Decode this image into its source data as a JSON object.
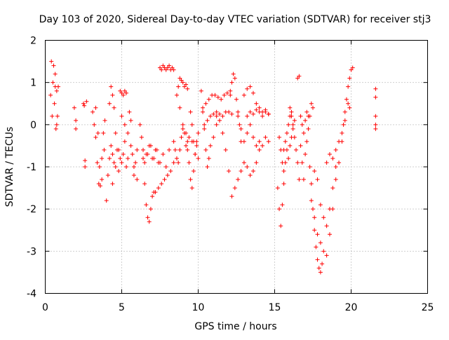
{
  "chart_data": {
    "type": "scatter",
    "title": "Day 103 of 2020, Sidereal Day-to-day VTEC variation (SDTVAR) for receiver stj3",
    "xlabel": "GPS time / hours",
    "ylabel": "SDTVAR / TECUs",
    "xlim": [
      0,
      25
    ],
    "ylim": [
      -4,
      2
    ],
    "xticks": [
      0,
      5,
      10,
      15,
      20,
      25
    ],
    "yticks": [
      -4,
      -3,
      -2,
      -1,
      0,
      1,
      2
    ],
    "grid": true,
    "marker": "+",
    "color": "#ff0000",
    "series": [
      {
        "name": "t0",
        "x": [
          0.4,
          0.5,
          0.6,
          0.65,
          0.7,
          0.75,
          0.8
        ],
        "y": [
          1.5,
          1.0,
          0.5,
          1.2,
          -0.1,
          0.8,
          0.2
        ]
      },
      {
        "name": "t1",
        "x": [
          0.35,
          0.45,
          0.55,
          0.65,
          0.75,
          0.85
        ],
        "y": [
          0.7,
          0.2,
          1.4,
          0.9,
          0.0,
          0.9
        ]
      },
      {
        "name": "t2",
        "x": [
          1.9,
          2.0,
          2.0
        ],
        "y": [
          0.4,
          0.1,
          -0.1
        ]
      },
      {
        "name": "t3",
        "x": [
          2.5,
          2.55,
          2.6,
          2.6,
          2.7
        ],
        "y": [
          0.5,
          0.45,
          -0.85,
          -1.0,
          0.55
        ]
      },
      {
        "name": "t4",
        "x": [
          3.1,
          3.3,
          3.4,
          3.5,
          3.6,
          3.7,
          3.8,
          3.9
        ],
        "y": [
          0.3,
          -0.3,
          -0.9,
          -1.4,
          -1.45,
          -0.8,
          -0.2,
          0.1
        ]
      },
      {
        "name": "t5",
        "x": [
          3.2,
          3.3,
          3.45,
          3.55,
          3.7,
          3.85
        ],
        "y": [
          0.0,
          0.4,
          -0.2,
          -1.0,
          -1.3,
          -0.6
        ]
      },
      {
        "name": "t6",
        "x": [
          4.0,
          4.1,
          4.2,
          4.3,
          4.4,
          4.5
        ],
        "y": [
          -1.8,
          -1.2,
          -0.8,
          -0.5,
          -0.7,
          -0.9
        ]
      },
      {
        "name": "t7",
        "x": [
          4.2,
          4.3,
          4.4,
          4.5,
          4.6,
          4.7,
          4.8,
          4.9
        ],
        "y": [
          0.5,
          0.9,
          0.7,
          0.4,
          -0.2,
          -0.6,
          -1.1,
          -0.8
        ]
      },
      {
        "name": "t8",
        "x": [
          4.4,
          4.6,
          4.8,
          5.0,
          5.1,
          5.2,
          5.3,
          5.4
        ],
        "y": [
          -1.4,
          -1.0,
          -0.6,
          -0.9,
          -0.7,
          -0.4,
          -1.0,
          -0.8
        ]
      },
      {
        "name": "t9",
        "x": [
          4.9,
          5.0,
          5.1,
          5.2,
          5.3
        ],
        "y": [
          0.8,
          0.75,
          0.7,
          0.8,
          0.75
        ]
      },
      {
        "name": "t10",
        "x": [
          5.0,
          5.2,
          5.4,
          5.6,
          5.8,
          6.0
        ],
        "y": [
          0.2,
          0.0,
          -0.2,
          -0.5,
          -1.0,
          -1.3
        ]
      },
      {
        "name": "t11",
        "x": [
          5.5,
          5.6,
          5.7,
          5.8,
          5.9,
          6.0
        ],
        "y": [
          0.3,
          0.1,
          -0.7,
          -1.2,
          -0.9,
          -0.6
        ]
      },
      {
        "name": "t12",
        "x": [
          6.3,
          6.4,
          6.5,
          6.6,
          6.7,
          6.8,
          6.9,
          7.0,
          7.1
        ],
        "y": [
          -0.3,
          -0.8,
          -1.4,
          -1.9,
          -2.2,
          -2.3,
          -2.0,
          -1.7,
          -1.6
        ]
      },
      {
        "name": "t13",
        "x": [
          6.2,
          6.4,
          6.6,
          6.8,
          7.0,
          7.2,
          7.4
        ],
        "y": [
          0.0,
          -0.6,
          -0.7,
          -0.5,
          -0.8,
          -0.6,
          -0.9
        ]
      },
      {
        "name": "t14",
        "x": [
          6.5,
          6.7,
          6.9,
          7.1,
          7.3,
          7.5,
          7.7,
          7.9,
          8.1
        ],
        "y": [
          -0.9,
          -0.7,
          -0.5,
          -0.8,
          -0.6,
          -0.9,
          -0.7,
          -1.0,
          -0.6
        ]
      },
      {
        "name": "t15",
        "x": [
          7.5,
          7.6,
          7.7,
          7.8,
          7.9,
          8.0,
          8.1,
          8.2,
          8.3,
          8.4
        ],
        "y": [
          1.35,
          1.3,
          1.4,
          1.35,
          1.3,
          1.35,
          1.4,
          1.3,
          1.35,
          1.3
        ]
      },
      {
        "name": "t16",
        "x": [
          7.2,
          7.4,
          7.6,
          7.8,
          8.0,
          8.2,
          8.4
        ],
        "y": [
          -1.6,
          -1.5,
          -1.4,
          -1.3,
          -1.2,
          -1.1,
          -0.9
        ]
      },
      {
        "name": "t17",
        "x": [
          8.4,
          8.5,
          8.6,
          8.7,
          8.8,
          8.9,
          9.0,
          9.1,
          9.2,
          9.3
        ],
        "y": [
          -0.4,
          -0.6,
          -0.8,
          -0.9,
          -0.6,
          -0.3,
          -0.1,
          -0.2,
          -0.5,
          -0.6
        ]
      },
      {
        "name": "t18",
        "x": [
          8.7,
          8.8,
          8.9,
          9.0,
          9.1,
          9.2,
          9.3
        ],
        "y": [
          0.9,
          1.1,
          1.05,
          1.0,
          0.9,
          0.95,
          0.85
        ]
      },
      {
        "name": "t19",
        "x": [
          8.6,
          8.8,
          9.0,
          9.2,
          9.4,
          9.6
        ],
        "y": [
          0.7,
          0.4,
          0.0,
          -0.2,
          -0.3,
          -0.4
        ]
      },
      {
        "name": "t20",
        "x": [
          9.3,
          9.4,
          9.5,
          9.6,
          9.7,
          9.8,
          9.9,
          10.0
        ],
        "y": [
          -0.4,
          -0.9,
          -1.3,
          -1.5,
          -1.1,
          -0.7,
          -0.4,
          -0.8
        ]
      },
      {
        "name": "t21",
        "x": [
          9.5,
          9.6,
          9.7,
          9.8,
          9.9,
          10.0
        ],
        "y": [
          0.3,
          0.0,
          -0.4,
          -0.7,
          -0.5,
          -0.2
        ]
      },
      {
        "name": "t22",
        "x": [
          10.2,
          10.3,
          10.4,
          10.5,
          10.6,
          10.7,
          10.8,
          11.0,
          11.2
        ],
        "y": [
          0.8,
          0.4,
          -0.1,
          -0.6,
          -1.0,
          -0.8,
          -0.5,
          -0.3,
          0.0
        ]
      },
      {
        "name": "t23",
        "x": [
          10.3,
          10.5,
          10.7,
          10.9,
          11.1,
          11.3,
          11.5,
          11.7,
          11.9,
          12.1
        ],
        "y": [
          0.3,
          0.5,
          0.6,
          0.7,
          0.7,
          0.65,
          0.6,
          0.7,
          0.75,
          0.7
        ]
      },
      {
        "name": "t24",
        "x": [
          10.4,
          10.6,
          10.8,
          11.0,
          11.2,
          11.4,
          11.6,
          11.8,
          12.0,
          12.2
        ],
        "y": [
          0.0,
          0.1,
          0.2,
          0.25,
          0.3,
          0.25,
          0.2,
          0.3,
          0.3,
          0.25
        ]
      },
      {
        "name": "t25",
        "x": [
          11.2,
          11.4,
          11.6,
          11.8,
          12.0,
          12.2
        ],
        "y": [
          0.2,
          0.1,
          -0.2,
          -0.6,
          -1.1,
          -1.7
        ]
      },
      {
        "name": "t26",
        "x": [
          12.1,
          12.2,
          12.3,
          12.4,
          12.5,
          12.6,
          12.7,
          12.8
        ],
        "y": [
          0.8,
          1.0,
          1.2,
          1.1,
          0.6,
          0.3,
          0.0,
          -0.4
        ]
      },
      {
        "name": "t27",
        "x": [
          12.4,
          12.6,
          12.8,
          13.0,
          13.2,
          13.4,
          13.6,
          13.8
        ],
        "y": [
          -1.5,
          -1.3,
          -1.1,
          -0.9,
          -1.0,
          -1.2,
          -1.1,
          -0.9
        ]
      },
      {
        "name": "t28",
        "x": [
          12.6,
          12.8,
          13.0,
          13.2,
          13.4,
          13.6,
          13.8,
          14.0
        ],
        "y": [
          0.2,
          -0.1,
          -0.4,
          -0.2,
          0.0,
          -0.3,
          -0.5,
          -0.4
        ]
      },
      {
        "name": "t29",
        "x": [
          13.0,
          13.2,
          13.4,
          13.6,
          13.8,
          14.0,
          14.2,
          14.4,
          14.6
        ],
        "y": [
          0.7,
          0.85,
          0.9,
          0.75,
          0.5,
          0.4,
          0.3,
          0.35,
          0.25
        ]
      },
      {
        "name": "t30",
        "x": [
          13.2,
          13.4,
          13.6,
          13.8,
          14.0,
          14.2,
          14.4,
          14.6
        ],
        "y": [
          0.2,
          0.3,
          0.25,
          0.35,
          0.3,
          0.2,
          0.3,
          0.25
        ]
      },
      {
        "name": "t31",
        "x": [
          14.0,
          14.2,
          14.4,
          14.6
        ],
        "y": [
          -0.6,
          -0.5,
          -0.3,
          -0.4
        ]
      },
      {
        "name": "t32",
        "x": [
          15.2,
          15.3,
          15.4,
          15.5,
          15.6
        ],
        "y": [
          -1.5,
          -2.0,
          -2.4,
          -1.9,
          -1.4
        ]
      },
      {
        "name": "t33",
        "x": [
          15.3,
          15.4,
          15.5,
          15.6,
          15.7,
          15.8,
          15.9,
          16.0,
          16.1
        ],
        "y": [
          -0.3,
          -0.6,
          -0.9,
          -0.6,
          -0.4,
          -0.2,
          0.0,
          0.2,
          0.3
        ]
      },
      {
        "name": "t34",
        "x": [
          15.6,
          15.7,
          15.8,
          15.9,
          16.0,
          16.1,
          16.2,
          16.3
        ],
        "y": [
          -1.1,
          -0.9,
          -0.6,
          -0.8,
          -0.5,
          -0.3,
          -0.1,
          0.1
        ]
      },
      {
        "name": "t35",
        "x": [
          16.0,
          16.1,
          16.2,
          16.3,
          16.4,
          16.5,
          16.6
        ],
        "y": [
          0.4,
          0.2,
          0.0,
          -0.3,
          -0.6,
          -0.9,
          -1.3
        ]
      },
      {
        "name": "t36",
        "x": [
          16.5,
          16.6,
          16.7,
          16.8,
          16.9,
          17.0,
          17.1,
          17.2
        ],
        "y": [
          1.1,
          1.15,
          0.2,
          0.0,
          -0.2,
          0.1,
          0.3,
          0.2
        ]
      },
      {
        "name": "t37",
        "x": [
          16.7,
          16.8,
          16.9,
          17.0,
          17.1,
          17.2,
          17.3,
          17.4,
          17.5
        ],
        "y": [
          -0.5,
          -0.9,
          -1.3,
          -0.7,
          -0.4,
          -0.1,
          0.2,
          0.5,
          0.4
        ]
      },
      {
        "name": "t38",
        "x": [
          17.3,
          17.4,
          17.5,
          17.6,
          17.7,
          17.8,
          17.9,
          18.0,
          18.1
        ],
        "y": [
          -1.0,
          -1.4,
          -2.0,
          -2.5,
          -2.9,
          -3.2,
          -3.4,
          -3.5,
          -3.3
        ]
      },
      {
        "name": "t39",
        "x": [
          17.4,
          17.6,
          17.8,
          18.0,
          18.2,
          18.4,
          18.6,
          18.8
        ],
        "y": [
          -1.8,
          -2.2,
          -2.6,
          -2.8,
          -3.0,
          -3.1,
          -2.6,
          -2.0
        ]
      },
      {
        "name": "t40",
        "x": [
          17.6,
          17.8,
          18.0,
          18.2,
          18.4,
          18.6,
          18.8,
          19.0
        ],
        "y": [
          -1.1,
          -1.3,
          -1.9,
          -2.2,
          -2.4,
          -2.0,
          -1.5,
          -1.0
        ]
      },
      {
        "name": "t41",
        "x": [
          18.4,
          18.6,
          18.8,
          19.0,
          19.2,
          19.4,
          19.5
        ],
        "y": [
          -0.9,
          -0.7,
          -0.8,
          -0.6,
          -0.4,
          -0.2,
          0.0
        ]
      },
      {
        "name": "t42",
        "x": [
          19.0,
          19.2,
          19.4,
          19.6,
          19.8,
          19.9
        ],
        "y": [
          -1.3,
          -0.9,
          -0.4,
          0.1,
          0.5,
          0.4
        ]
      },
      {
        "name": "t43",
        "x": [
          19.6,
          19.7,
          19.8,
          19.9,
          20.0,
          20.1
        ],
        "y": [
          0.3,
          0.6,
          0.9,
          1.1,
          1.3,
          1.35
        ]
      },
      {
        "name": "t44",
        "x": [
          21.6,
          21.6,
          21.6,
          21.6,
          21.6
        ],
        "y": [
          0.85,
          0.65,
          0.2,
          0.0,
          -0.1
        ]
      }
    ]
  }
}
